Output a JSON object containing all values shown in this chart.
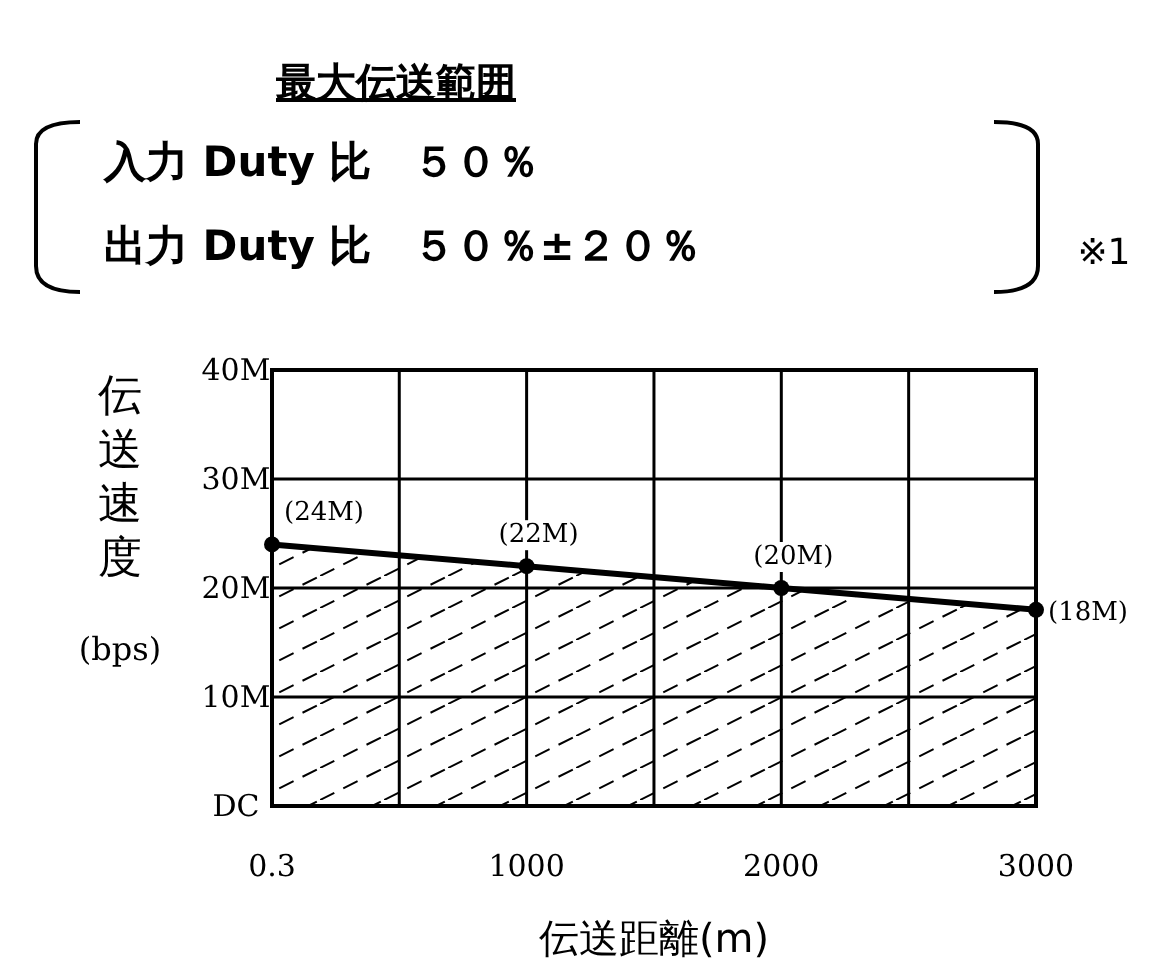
{
  "chart_data": {
    "type": "area",
    "title": "最大伝送範囲",
    "annotations": [
      "入力 Duty 比　５０％",
      "出力 Duty 比　５０％±２０％",
      "※1"
    ],
    "xlabel": "伝送距離(m)",
    "ylabel": "伝送速度 (bps)",
    "x": [
      0.3,
      1000,
      2000,
      3000
    ],
    "series": [
      {
        "color": "#000000",
        "values": [
          24,
          22,
          20,
          18
        ],
        "value_labels": [
          "(24M)",
          "(22M)",
          "(20M)",
          "(18M)"
        ]
      }
    ],
    "xlim": [
      0.3,
      3000
    ],
    "xticks": [
      0.3,
      {
        "value": 500,
        "label": null
      },
      1000,
      {
        "value": 1500,
        "label": null
      },
      2000,
      {
        "value": 2500,
        "label": null
      },
      3000
    ],
    "ylim": [
      0,
      40
    ],
    "yticks": [
      {
        "value": 0,
        "label": "DC"
      },
      {
        "value": 10,
        "label": "10M"
      },
      {
        "value": 20,
        "label": "20M"
      },
      {
        "value": 30,
        "label": "30M"
      },
      {
        "value": 40,
        "label": "40M"
      }
    ],
    "grid": true,
    "marker": "circle",
    "line_style": "solid"
  }
}
